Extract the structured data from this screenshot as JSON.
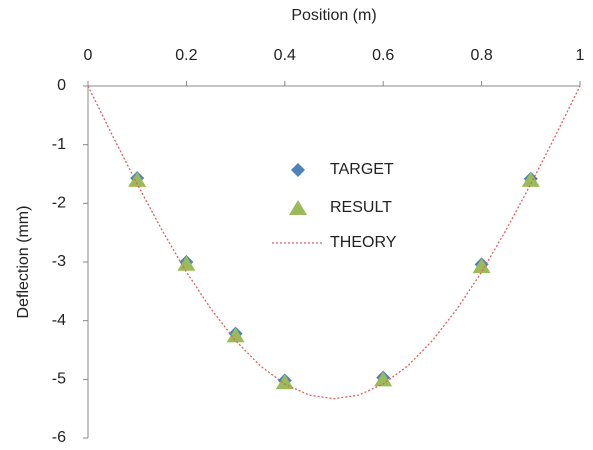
{
  "chart_data": {
    "type": "scatter",
    "x_label": "Position (m)",
    "y_label": "Deflection (mm)",
    "xlim": [
      0,
      1
    ],
    "xticks": [
      0,
      0.2,
      0.4,
      0.6,
      0.8,
      1
    ],
    "ylim": [
      -6,
      0
    ],
    "yticks": [
      0,
      -1,
      -2,
      -3,
      -4,
      -5,
      -6
    ],
    "x_axis_position": "top",
    "grid": false,
    "series": [
      {
        "name": "TARGET",
        "color": "#4f81bd",
        "marker": "diamond",
        "x": [
          0.1,
          0.2,
          0.3,
          0.4,
          0.6,
          0.8,
          0.9
        ],
        "values": [
          -1.57,
          -3.0,
          -4.22,
          -5.02,
          -4.97,
          -3.04,
          -1.58
        ]
      },
      {
        "name": "RESULT",
        "color": "#9bbb59",
        "marker": "triangle",
        "x": [
          0.1,
          0.2,
          0.3,
          0.4,
          0.6,
          0.8,
          0.9
        ],
        "values": [
          -1.6,
          -3.03,
          -4.25,
          -5.05,
          -5.0,
          -3.07,
          -1.6
        ]
      },
      {
        "name": "THEORY",
        "color": "#e06060",
        "line_style": "dotted",
        "x": [
          0,
          0.05,
          0.1,
          0.15,
          0.2,
          0.25,
          0.3,
          0.35,
          0.4,
          0.45,
          0.5,
          0.55,
          0.6,
          0.65,
          0.7,
          0.75,
          0.8,
          0.85,
          0.9,
          0.95,
          1
        ],
        "values": [
          0,
          -0.85,
          -1.67,
          -2.45,
          -3.17,
          -3.8,
          -4.34,
          -4.77,
          -5.08,
          -5.27,
          -5.33,
          -5.27,
          -5.08,
          -4.77,
          -4.34,
          -3.8,
          -3.17,
          -2.45,
          -1.67,
          -0.85,
          0
        ]
      }
    ]
  }
}
